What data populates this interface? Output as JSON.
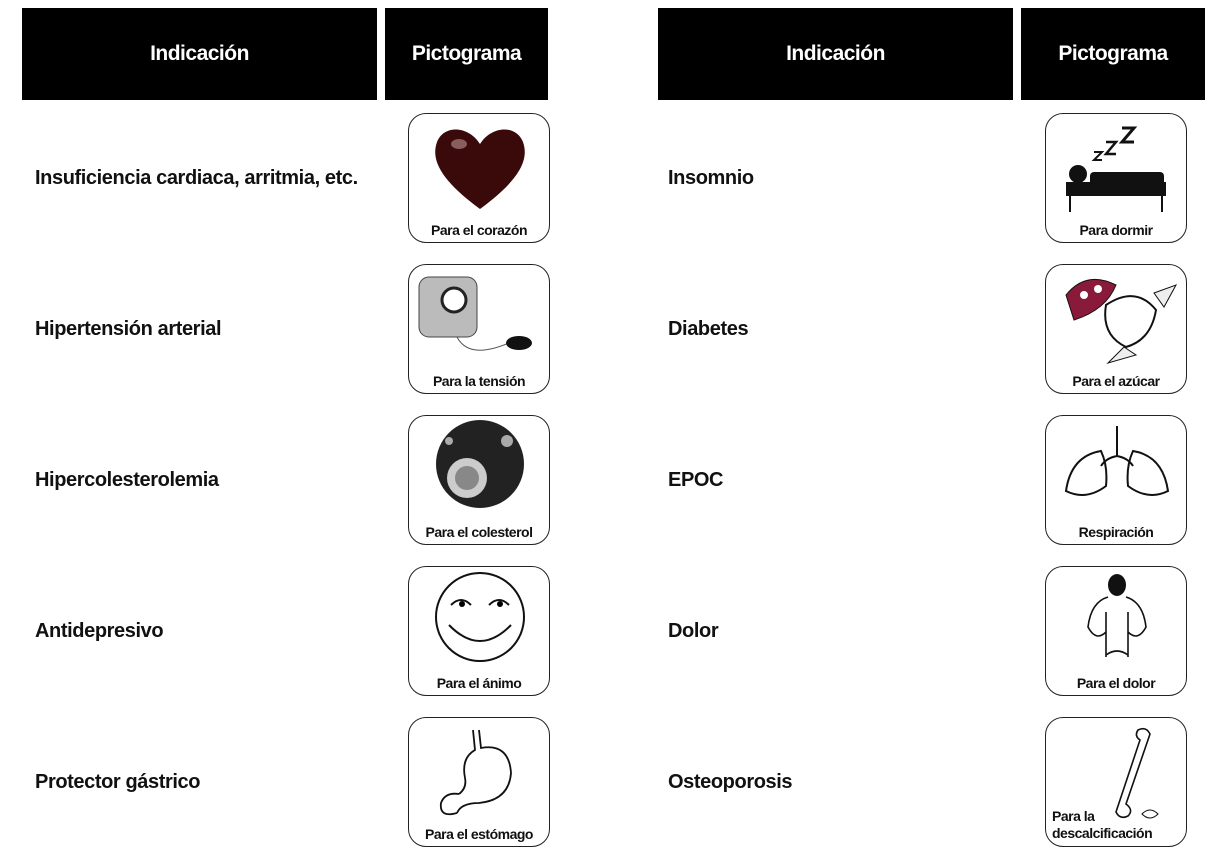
{
  "tables": [
    {
      "header": [
        "Indicación",
        "Pictograma"
      ],
      "rows": [
        {
          "indication": "Insuficiencia cardiaca, arritmia, etc.",
          "pictogram": "Para el corazón"
        },
        {
          "indication": "Hipertensión arterial",
          "pictogram": "Para la tensión"
        },
        {
          "indication": "Hipercolesterolemia",
          "pictogram": "Para el colesterol"
        },
        {
          "indication": "Antidepresivo",
          "pictogram": "Para el ánimo"
        },
        {
          "indication": "Protector gástrico",
          "pictogram": "Para el estómago"
        }
      ]
    },
    {
      "header": [
        "Indicación",
        "Pictograma"
      ],
      "rows": [
        {
          "indication": "Insomnio",
          "pictogram": "Para dormir"
        },
        {
          "indication": "Diabetes",
          "pictogram": "Para el azúcar"
        },
        {
          "indication": "EPOC",
          "pictogram": "Respiración"
        },
        {
          "indication": "Dolor",
          "pictogram": "Para el dolor"
        },
        {
          "indication": "Osteoporosis",
          "pictogram": "Para la descalcificación"
        }
      ]
    }
  ]
}
